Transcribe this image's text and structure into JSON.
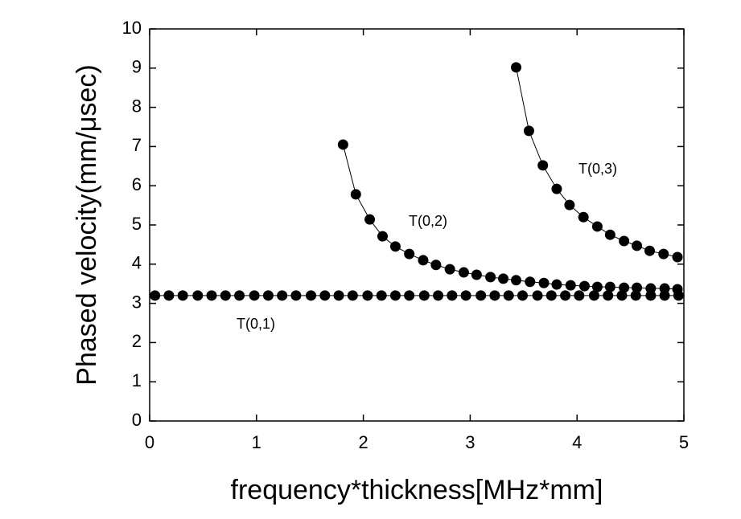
{
  "chart_data": {
    "type": "line",
    "x_label": "frequency*thickness[MHz*mm]",
    "y_label": "Phased velocity(mm/μsec)",
    "xlim": [
      0,
      5
    ],
    "xticks": [
      0,
      1,
      2,
      3,
      4,
      5
    ],
    "ylim": [
      0,
      10
    ],
    "yticks": [
      0,
      1,
      2,
      3,
      4,
      5,
      6,
      7,
      8,
      9,
      10
    ],
    "series": [
      {
        "name": "T(0,1)",
        "color": "#000000",
        "x": [
          0.05,
          0.18,
          0.31,
          0.45,
          0.58,
          0.71,
          0.84,
          0.98,
          1.11,
          1.24,
          1.37,
          1.51,
          1.64,
          1.77,
          1.9,
          2.04,
          2.17,
          2.3,
          2.43,
          2.57,
          2.7,
          2.83,
          2.96,
          3.1,
          3.23,
          3.36,
          3.49,
          3.63,
          3.76,
          3.89,
          4.02,
          4.16,
          4.29,
          4.42,
          4.55,
          4.69,
          4.82,
          4.95
        ],
        "values": [
          3.2,
          3.2,
          3.2,
          3.2,
          3.2,
          3.2,
          3.2,
          3.2,
          3.2,
          3.2,
          3.2,
          3.2,
          3.2,
          3.2,
          3.2,
          3.2,
          3.2,
          3.2,
          3.2,
          3.2,
          3.2,
          3.2,
          3.2,
          3.2,
          3.2,
          3.2,
          3.2,
          3.2,
          3.2,
          3.2,
          3.2,
          3.2,
          3.2,
          3.2,
          3.2,
          3.2,
          3.2,
          3.2
        ]
      },
      {
        "name": "T(0,2)",
        "color": "#000000",
        "x": [
          1.81,
          1.93,
          2.06,
          2.18,
          2.3,
          2.43,
          2.56,
          2.68,
          2.81,
          2.94,
          3.06,
          3.19,
          3.31,
          3.43,
          3.56,
          3.69,
          3.81,
          3.94,
          4.07,
          4.19,
          4.31,
          4.44,
          4.56,
          4.69,
          4.82,
          4.94
        ],
        "values": [
          7.05,
          5.78,
          5.14,
          4.71,
          4.45,
          4.26,
          4.1,
          3.98,
          3.87,
          3.79,
          3.73,
          3.67,
          3.63,
          3.59,
          3.55,
          3.52,
          3.48,
          3.46,
          3.44,
          3.42,
          3.42,
          3.4,
          3.4,
          3.38,
          3.38,
          3.36
        ]
      },
      {
        "name": "T(0,3)",
        "color": "#000000",
        "x": [
          3.43,
          3.55,
          3.68,
          3.81,
          3.93,
          4.06,
          4.19,
          4.31,
          4.44,
          4.56,
          4.68,
          4.81,
          4.94
        ],
        "values": [
          9.02,
          7.4,
          6.52,
          5.92,
          5.51,
          5.2,
          4.96,
          4.75,
          4.59,
          4.47,
          4.34,
          4.26,
          4.18
        ]
      }
    ]
  }
}
